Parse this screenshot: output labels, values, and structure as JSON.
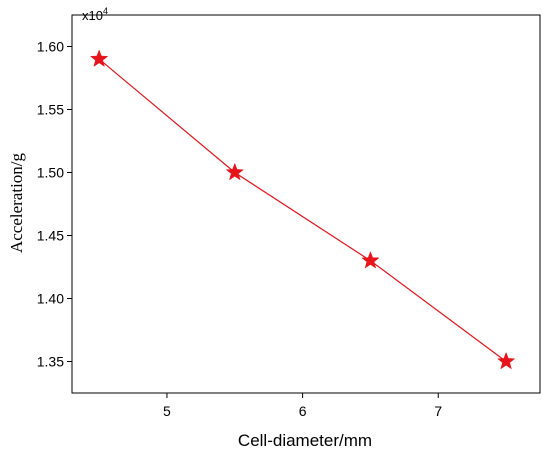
{
  "chart_data": {
    "type": "line",
    "xlabel": "Cell-diameter/mm",
    "ylabel": "Acceleration/g",
    "y_multiplier": {
      "base": "x10",
      "exponent": "4"
    },
    "xlim": [
      4.3,
      7.75
    ],
    "ylim": [
      1.325,
      1.625
    ],
    "x_ticks": [
      5,
      6,
      7
    ],
    "y_ticks": [
      1.35,
      1.4,
      1.45,
      1.5,
      1.55,
      1.6
    ],
    "x_tick_labels": [
      "5",
      "6",
      "7"
    ],
    "y_tick_labels": [
      "1.35",
      "1.40",
      "1.45",
      "1.50",
      "1.55",
      "1.60"
    ],
    "grid": false,
    "series": [
      {
        "x": [
          4.5,
          5.5,
          6.5,
          7.5
        ],
        "values": [
          1.59,
          1.5,
          1.43,
          1.35
        ],
        "color": "#e8141b",
        "marker": "star"
      }
    ]
  }
}
